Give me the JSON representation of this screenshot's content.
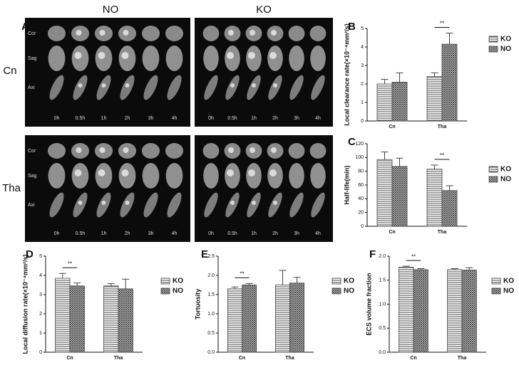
{
  "figure_a": {
    "panel": "A",
    "columns": [
      "NO",
      "KO"
    ],
    "rows": [
      "Cn",
      "Tha"
    ],
    "views": [
      "Cor",
      "Sag",
      "Axi"
    ],
    "times": [
      "0h",
      "0.5h",
      "1h",
      "2h",
      "3h",
      "4h"
    ]
  },
  "chart_data": [
    {
      "type": "bar",
      "panel": "B",
      "ylabel": "Local clearance rate(×10⁻⁴mm²/s)",
      "categories": [
        "Cn",
        "Tha"
      ],
      "series": [
        {
          "name": "KO",
          "color": "#444",
          "pattern": "stripes",
          "values": [
            2.0,
            2.4
          ],
          "errors": [
            0.25,
            0.2
          ]
        },
        {
          "name": "NO",
          "color": "#444",
          "pattern": "crosshatch",
          "values": [
            2.1,
            4.15
          ],
          "errors": [
            0.5,
            0.6
          ]
        }
      ],
      "ylim": [
        0,
        5
      ],
      "yticks": [
        0,
        1,
        2,
        3,
        4,
        5
      ],
      "annotation": {
        "text": "**",
        "category": "Tha"
      },
      "legend": "right"
    },
    {
      "type": "bar",
      "panel": "C",
      "ylabel": "Half-life(min)",
      "categories": [
        "Cn",
        "Tha"
      ],
      "series": [
        {
          "name": "KO",
          "color": "#444",
          "pattern": "stripes",
          "values": [
            97,
            83
          ],
          "errors": [
            11,
            6
          ]
        },
        {
          "name": "NO",
          "color": "#444",
          "pattern": "crosshatch",
          "values": [
            87,
            52
          ],
          "errors": [
            12,
            7
          ]
        }
      ],
      "ylim": [
        0,
        120
      ],
      "yticks": [
        0,
        20,
        40,
        60,
        80,
        100,
        120
      ],
      "annotation": {
        "text": "**",
        "category": "Tha"
      },
      "legend": "right"
    },
    {
      "type": "bar",
      "panel": "D",
      "ylabel": "Local diffusion rate(×10⁻⁴mm²/s)",
      "categories": [
        "Cn",
        "Tha"
      ],
      "series": [
        {
          "name": "KO",
          "color": "#444",
          "pattern": "stripes",
          "values": [
            3.85,
            3.45
          ],
          "errors": [
            0.25,
            0.12
          ]
        },
        {
          "name": "NO",
          "color": "#444",
          "pattern": "crosshatch",
          "values": [
            3.45,
            3.3
          ],
          "errors": [
            0.15,
            0.5
          ]
        }
      ],
      "ylim": [
        0,
        5
      ],
      "yticks": [
        0,
        1,
        2,
        3,
        4,
        5
      ],
      "annotation": {
        "text": "**",
        "category": "Cn"
      },
      "legend": "right"
    },
    {
      "type": "bar",
      "panel": "E",
      "ylabel": "Tortuosity",
      "categories": [
        "Cn",
        "Tha"
      ],
      "series": [
        {
          "name": "KO",
          "color": "#444",
          "pattern": "stripes",
          "values": [
            1.65,
            1.75
          ],
          "errors": [
            0.05,
            0.38
          ]
        },
        {
          "name": "NO",
          "color": "#444",
          "pattern": "crosshatch",
          "values": [
            1.75,
            1.8
          ],
          "errors": [
            0.04,
            0.15
          ]
        }
      ],
      "ylim": [
        0,
        2.5
      ],
      "yticks": [
        {
          "value": 0,
          "label": "0.0"
        },
        {
          "value": 0.5,
          "label": "0.5"
        },
        {
          "value": 1,
          "label": "1.0"
        },
        {
          "value": 1.5,
          "label": "1.5"
        },
        {
          "value": 2,
          "label": "2.0"
        },
        {
          "value": 2.5,
          "label": "2.5"
        }
      ],
      "annotation": {
        "text": "**",
        "category": "Cn"
      },
      "legend": "right"
    },
    {
      "type": "bar",
      "panel": "F",
      "ylabel": "ECS volume fraction",
      "categories": [
        "Cn",
        "Tha"
      ],
      "series": [
        {
          "name": "KO",
          "color": "#444",
          "pattern": "stripes",
          "values": [
            1.77,
            1.72
          ],
          "errors": [
            0.02,
            0.02
          ]
        },
        {
          "name": "NO",
          "color": "#444",
          "pattern": "crosshatch",
          "values": [
            1.72,
            1.71
          ],
          "errors": [
            0.02,
            0.05
          ]
        }
      ],
      "ylim": [
        0,
        2
      ],
      "yticks": [
        {
          "value": 0,
          "label": "0.0"
        },
        {
          "value": 0.5,
          "label": "0.5"
        },
        {
          "value": 1,
          "label": "1.0"
        },
        {
          "value": 1.5,
          "label": "1.5"
        },
        {
          "value": 2,
          "label": "2.0"
        }
      ],
      "annotation": {
        "text": "**",
        "category": "Cn"
      },
      "legend": "right"
    }
  ]
}
